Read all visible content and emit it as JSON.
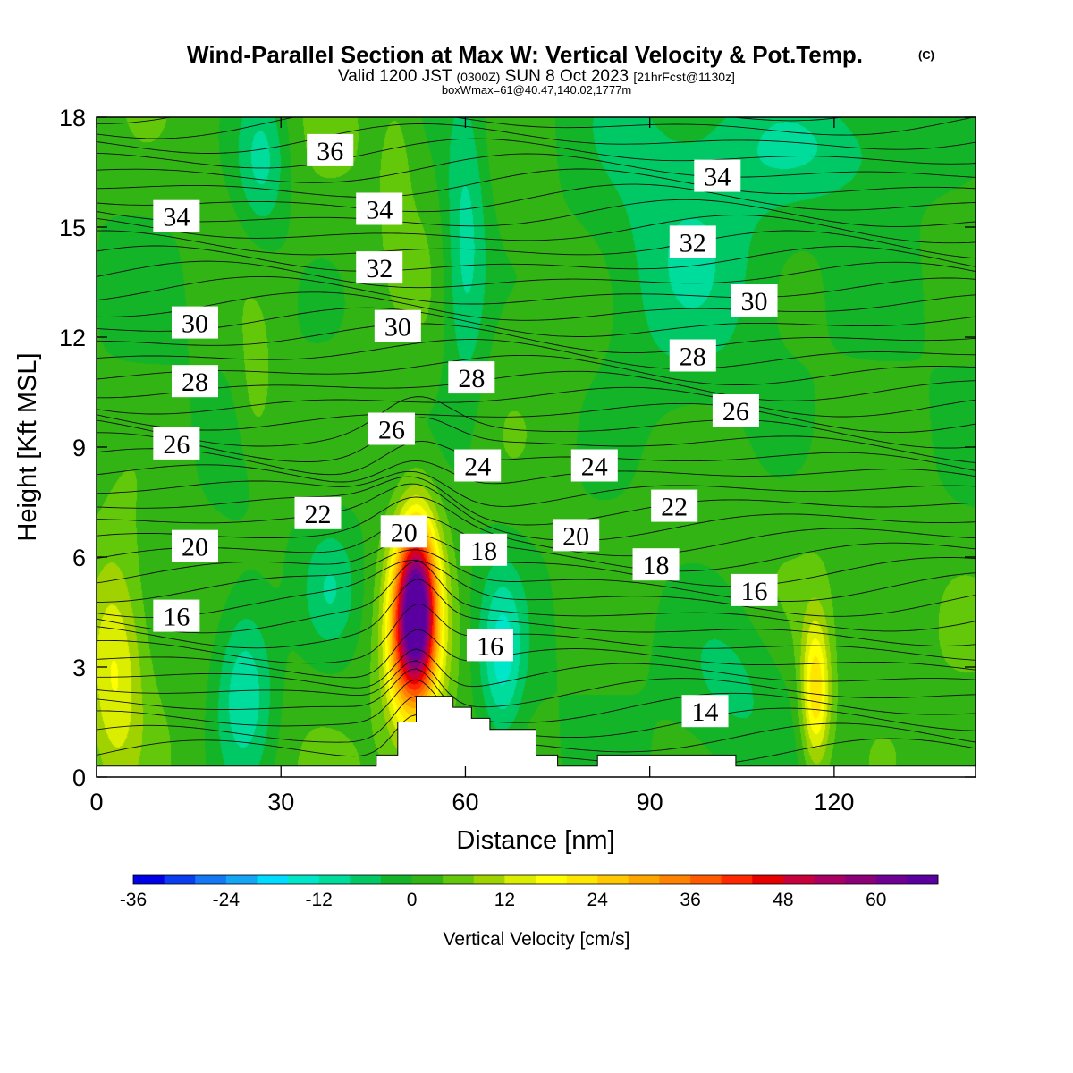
{
  "header": {
    "title": "Wind-Parallel Section at Max W: Vertical Velocity & Pot.Temp.",
    "title_mark": "(C)",
    "valid_prefix": "Valid 1200 JST",
    "valid_z": "(0300Z)",
    "valid_date": "SUN 8 Oct 2023",
    "valid_fcst": "[21hrFcst@1130z]",
    "box_info": "boxWmax=61@40.47,140.02,1777m"
  },
  "chart_data": {
    "type": "heatmap",
    "xlabel": "Distance [nm]",
    "ylabel": "Height [Kft MSL]",
    "xlim": [
      0,
      143
    ],
    "ylim": [
      0,
      18
    ],
    "x_ticks": [
      "0",
      "30",
      "60",
      "90",
      "120"
    ],
    "x_tick_values": [
      0,
      30,
      60,
      90,
      120
    ],
    "y_ticks": [
      "0",
      "3",
      "6",
      "9",
      "12",
      "15",
      "18"
    ],
    "y_tick_values": [
      0,
      3,
      6,
      9,
      12,
      15,
      18
    ],
    "colorbar": {
      "label": "Vertical Velocity [cm/s]",
      "min": -36,
      "max": 68,
      "step": 4,
      "tick_labels": [
        "-36",
        "-24",
        "-12",
        "0",
        "12",
        "24",
        "36",
        "48",
        "60"
      ],
      "tick_values": [
        -36,
        -24,
        -12,
        0,
        12,
        24,
        36,
        48,
        60
      ],
      "colors": [
        "#0000e6",
        "#0a3cf0",
        "#1478f5",
        "#14a5f5",
        "#00dcff",
        "#00e6c8",
        "#00dc9b",
        "#00c864",
        "#14b428",
        "#32b414",
        "#64c80a",
        "#a0d200",
        "#dcee00",
        "#ffff00",
        "#ffe600",
        "#ffc800",
        "#ffa500",
        "#ff8200",
        "#ff5a00",
        "#ff2800",
        "#e60000",
        "#c8003c",
        "#aa0064",
        "#8c0078",
        "#6e0096",
        "#5a00a0"
      ]
    },
    "theta_contours": [
      {
        "label": "14",
        "x": 99,
        "y": 1.8
      },
      {
        "label": "16",
        "x": 13,
        "y": 4.4
      },
      {
        "label": "16",
        "x": 64,
        "y": 3.6
      },
      {
        "label": "16",
        "x": 107,
        "y": 5.1
      },
      {
        "label": "18",
        "x": 63,
        "y": 6.2
      },
      {
        "label": "18",
        "x": 91,
        "y": 5.8
      },
      {
        "label": "20",
        "x": 16,
        "y": 6.3
      },
      {
        "label": "20",
        "x": 50,
        "y": 6.7
      },
      {
        "label": "20",
        "x": 78,
        "y": 6.6
      },
      {
        "label": "22",
        "x": 36,
        "y": 7.2
      },
      {
        "label": "22",
        "x": 94,
        "y": 7.4
      },
      {
        "label": "24",
        "x": 62,
        "y": 8.5
      },
      {
        "label": "24",
        "x": 81,
        "y": 8.5
      },
      {
        "label": "26",
        "x": 13,
        "y": 9.1
      },
      {
        "label": "26",
        "x": 48,
        "y": 9.5
      },
      {
        "label": "26",
        "x": 104,
        "y": 10.0
      },
      {
        "label": "28",
        "x": 16,
        "y": 10.8
      },
      {
        "label": "28",
        "x": 61,
        "y": 10.9
      },
      {
        "label": "28",
        "x": 97,
        "y": 11.5
      },
      {
        "label": "30",
        "x": 16,
        "y": 12.4
      },
      {
        "label": "30",
        "x": 49,
        "y": 12.3
      },
      {
        "label": "30",
        "x": 107,
        "y": 13.0
      },
      {
        "label": "32",
        "x": 46,
        "y": 13.9
      },
      {
        "label": "32",
        "x": 97,
        "y": 14.6
      },
      {
        "label": "34",
        "x": 13,
        "y": 15.3
      },
      {
        "label": "34",
        "x": 46,
        "y": 15.5
      },
      {
        "label": "34",
        "x": 101,
        "y": 16.4
      },
      {
        "label": "36",
        "x": 38,
        "y": 17.1
      }
    ],
    "terrain_kft": [
      {
        "x0": 0,
        "x1": 45.5,
        "h": 0.3
      },
      {
        "x0": 45.5,
        "x1": 49,
        "h": 0.6
      },
      {
        "x0": 49,
        "x1": 52,
        "h": 1.5
      },
      {
        "x0": 52,
        "x1": 58,
        "h": 2.2
      },
      {
        "x0": 58,
        "x1": 61,
        "h": 1.9
      },
      {
        "x0": 61,
        "x1": 64,
        "h": 1.6
      },
      {
        "x0": 64,
        "x1": 71.5,
        "h": 1.3
      },
      {
        "x0": 71.5,
        "x1": 75,
        "h": 0.6
      },
      {
        "x0": 75,
        "x1": 81.5,
        "h": 0.3
      },
      {
        "x0": 81.5,
        "x1": 104,
        "h": 0.6
      },
      {
        "x0": 104,
        "x1": 143,
        "h": 0.3
      }
    ],
    "w_features": [
      {
        "x": 52,
        "y": 4.5,
        "sx": 2.2,
        "sy": 1.6,
        "amp": 60
      },
      {
        "x": 52,
        "y": 4.0,
        "sx": 4.0,
        "sy": 2.4,
        "amp": 16
      },
      {
        "x": 49,
        "y": 3.4,
        "sx": 1.6,
        "sy": 1.4,
        "amp": 8
      },
      {
        "x": 3,
        "y": 3.0,
        "sx": 3.2,
        "sy": 2.2,
        "amp": 14
      },
      {
        "x": 117,
        "y": 2.3,
        "sx": 1.6,
        "sy": 1.4,
        "amp": 22
      },
      {
        "x": 26,
        "y": 10.5,
        "sx": 2.3,
        "sy": 1.6,
        "amp": 6
      },
      {
        "x": 24,
        "y": 2.5,
        "sx": 3.5,
        "sy": 1.8,
        "amp": -14
      },
      {
        "x": 66,
        "y": 3.2,
        "sx": 2.4,
        "sy": 1.6,
        "amp": -13
      },
      {
        "x": 38,
        "y": 5.2,
        "sx": 3.0,
        "sy": 1.2,
        "amp": -7
      },
      {
        "x": 104,
        "y": 2.6,
        "sx": 6.0,
        "sy": 1.5,
        "amp": -6
      },
      {
        "x": 60,
        "y": 14.6,
        "sx": 2.6,
        "sy": 3.0,
        "amp": -12
      },
      {
        "x": 27,
        "y": 16.8,
        "sx": 3.0,
        "sy": 1.5,
        "amp": -11
      },
      {
        "x": 95,
        "y": 14.0,
        "sx": 11.0,
        "sy": 3.6,
        "amp": -8
      },
      {
        "x": 120,
        "y": 17.2,
        "sx": 12.0,
        "sy": 1.1,
        "amp": -7
      },
      {
        "x": 49,
        "y": 17.0,
        "sx": 2.0,
        "sy": 1.5,
        "amp": 4
      }
    ]
  }
}
